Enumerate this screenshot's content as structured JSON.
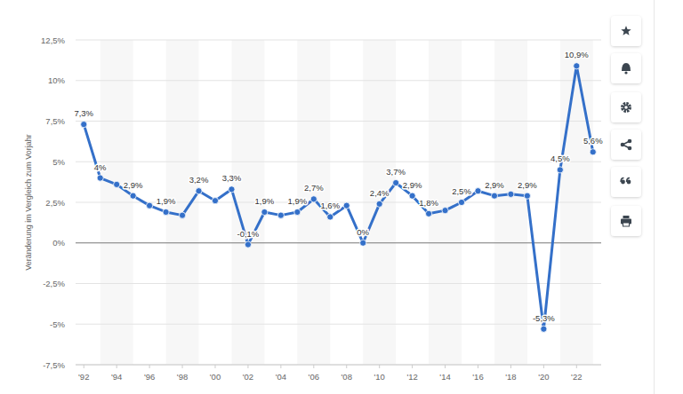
{
  "chart_data": {
    "type": "line",
    "y_label": "Veränderung im Vergleich zum Vorjahr",
    "x": [
      1992,
      1993,
      1994,
      1995,
      1996,
      1997,
      1998,
      1999,
      2000,
      2001,
      2002,
      2003,
      2004,
      2005,
      2006,
      2007,
      2008,
      2009,
      2010,
      2011,
      2012,
      2013,
      2014,
      2015,
      2016,
      2017,
      2018,
      2019,
      2020,
      2021,
      2022,
      2023
    ],
    "values": [
      7.3,
      4.0,
      3.6,
      2.9,
      2.3,
      1.9,
      1.7,
      3.2,
      2.6,
      3.3,
      -0.1,
      1.9,
      1.7,
      1.9,
      2.7,
      1.6,
      2.3,
      0,
      2.4,
      3.7,
      2.9,
      1.8,
      2.0,
      2.5,
      3.2,
      2.9,
      3.0,
      2.9,
      -5.3,
      4.5,
      10.9,
      5.6
    ],
    "value_labels": [
      "7,3%",
      "4%",
      null,
      "2,9%",
      null,
      "1,9%",
      null,
      "3,2%",
      null,
      "3,3%",
      "-0,1%",
      "1,9%",
      null,
      "1,9%",
      "2,7%",
      "1,6%",
      null,
      "0%",
      "2,4%",
      "3,7%",
      "2,9%",
      "1,8%",
      null,
      "2,5%",
      null,
      "2,9%",
      null,
      "2,9%",
      "-5,3%",
      "4,5%",
      "10,9%",
      "5,6%"
    ],
    "color": "#3470c9",
    "marker": "circle",
    "line_style": "solid",
    "data_labels": true,
    "grid": true,
    "xlim": [
      1991.5,
      2023.5
    ],
    "xticks": [
      {
        "value": 1992,
        "label": "'92"
      },
      {
        "value": 1994,
        "label": "'94"
      },
      {
        "value": 1996,
        "label": "'96"
      },
      {
        "value": 1998,
        "label": "'98"
      },
      {
        "value": 2000,
        "label": "'00"
      },
      {
        "value": 2002,
        "label": "'02"
      },
      {
        "value": 2004,
        "label": "'04"
      },
      {
        "value": 2006,
        "label": "'06"
      },
      {
        "value": 2008,
        "label": "'08"
      },
      {
        "value": 2010,
        "label": "'10"
      },
      {
        "value": 2012,
        "label": "'12"
      },
      {
        "value": 2014,
        "label": "'14"
      },
      {
        "value": 2016,
        "label": "'16"
      },
      {
        "value": 2018,
        "label": "'18"
      },
      {
        "value": 2020,
        "label": "'20"
      },
      {
        "value": 2022,
        "label": "'22"
      }
    ],
    "ylim": [
      -7.5,
      12.5
    ],
    "yticks": [
      {
        "value": -7.5,
        "label": "-7,5%"
      },
      {
        "value": -5,
        "label": "-5%"
      },
      {
        "value": -2.5,
        "label": "-2,5%"
      },
      {
        "value": 0,
        "label": "0%"
      },
      {
        "value": 2.5,
        "label": "2,5%"
      },
      {
        "value": 5,
        "label": "5%"
      },
      {
        "value": 7.5,
        "label": "7,5%"
      },
      {
        "value": 10,
        "label": "10%"
      },
      {
        "value": 12.5,
        "label": "12,5%"
      }
    ]
  }
}
